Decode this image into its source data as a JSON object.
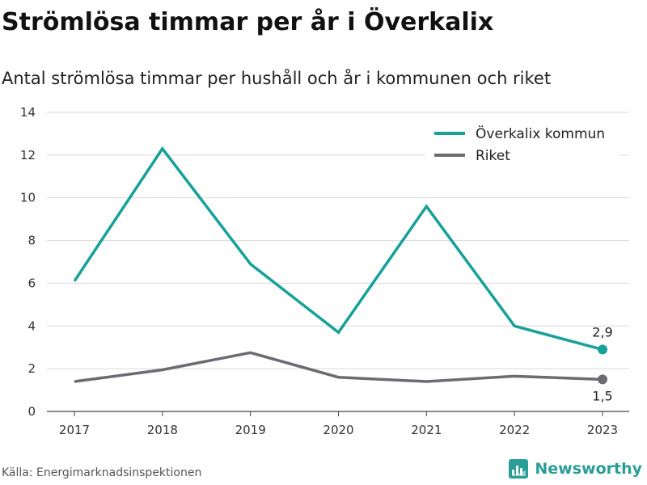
{
  "header": {
    "title": "Strömlösa timmar per år i Överkalix",
    "subtitle": "Antal strömlösa timmar per hushåll och år i kommunen och riket"
  },
  "footer": {
    "source": "Källa: Energimarknadsinspektionen",
    "brand": "Newsworthy",
    "brand_icon": "bar-chart-logo-icon"
  },
  "chart_data": {
    "type": "line",
    "x": [
      "2017",
      "2018",
      "2019",
      "2020",
      "2021",
      "2022",
      "2023"
    ],
    "ylim": [
      0,
      14
    ],
    "yticks": [
      0,
      2,
      4,
      6,
      8,
      10,
      12,
      14
    ],
    "grid": true,
    "legend_position": "top-right",
    "series": [
      {
        "name": "Överkalix kommun",
        "color": "#17a199",
        "values": [
          6.1,
          12.3,
          6.9,
          3.7,
          9.6,
          4.0,
          2.9
        ],
        "end_label": "2,9"
      },
      {
        "name": "Riket",
        "color": "#6b6b72",
        "values": [
          1.4,
          1.95,
          2.75,
          1.6,
          1.4,
          1.65,
          1.5
        ],
        "end_label": "1,5"
      }
    ]
  }
}
